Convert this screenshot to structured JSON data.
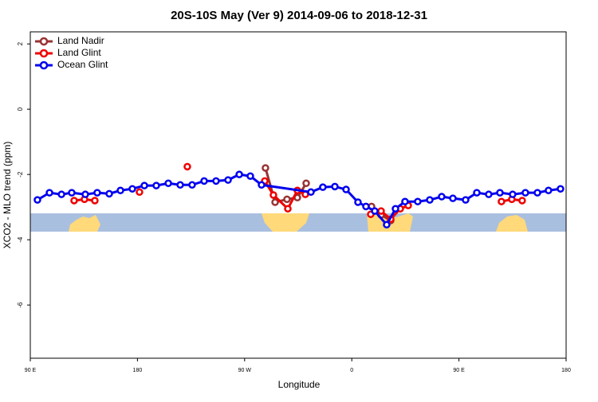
{
  "chart_data": {
    "type": "line",
    "title": "20S-10S May (Ver 9)   2014-09-06 to 2018-12-31",
    "xlabel": "Longitude",
    "ylabel": "XCO2 - MLO trend (ppm)",
    "xlim": [
      90,
      540
    ],
    "ylim": [
      -7.63,
      2.37
    ],
    "xticks": [
      {
        "value": 90,
        "label": "90 E"
      },
      {
        "value": 180,
        "label": "180"
      },
      {
        "value": 270,
        "label": "90 W"
      },
      {
        "value": 360,
        "label": "0"
      },
      {
        "value": 450,
        "label": "90 E"
      },
      {
        "value": 540,
        "label": "180"
      }
    ],
    "yticks": [
      2,
      0,
      -2,
      -4,
      -6
    ],
    "legend": "top-left",
    "series": [
      {
        "name": "Land Nadir",
        "color": "#993333",
        "x": [
          287.5,
          295.6,
          305.6,
          314.3,
          321.7,
          350,
          376.6,
          384.6,
          392.7
        ],
        "values": [
          -1.8,
          -2.85,
          -2.76,
          -2.71,
          -2.27,
          null,
          -2.98,
          -3.24,
          -3.41
        ]
      },
      {
        "name": "Land Glint",
        "color": "#ee0000",
        "x": [
          126.8,
          135.5,
          144.2,
          160,
          181.7,
          200,
          221.9,
          250,
          286.9,
          294.2,
          306.3,
          314.3,
          321.0,
          350,
          375.9,
          384.6,
          392.7,
          400.7,
          407.4,
          450,
          485.7,
          494.4,
          503.1
        ],
        "values": [
          -2.8,
          -2.76,
          -2.8,
          null,
          -2.54,
          null,
          -1.76,
          null,
          -2.2,
          -2.63,
          -3.05,
          -2.49,
          -2.61,
          null,
          -3.22,
          -3.12,
          -3.37,
          -3.05,
          -2.95,
          null,
          -2.83,
          -2.76,
          -2.8
        ]
      },
      {
        "name": "Ocean Glint",
        "color": "#0000ee",
        "x": [
          96.0,
          106.1,
          116.2,
          124.8,
          136.2,
          146.2,
          156.3,
          165.7,
          175.7,
          185.8,
          195.8,
          205.9,
          215.9,
          225.9,
          236.0,
          246.0,
          256.1,
          265.5,
          274.8,
          284.2,
          325.7,
          335.7,
          345.8,
          355.2,
          365.2,
          371.9,
          379.3,
          389.3,
          396.7,
          404.7,
          415.4,
          425.5,
          435.5,
          444.9,
          455.6,
          465.0,
          475.0,
          484.4,
          495.1,
          505.8,
          515.9,
          525.2,
          535.3
        ],
        "values": [
          -2.78,
          -2.56,
          -2.61,
          -2.56,
          -2.61,
          -2.56,
          -2.59,
          -2.49,
          -2.44,
          -2.34,
          -2.34,
          -2.27,
          -2.32,
          -2.32,
          -2.2,
          -2.2,
          -2.17,
          -2.0,
          -2.05,
          -2.32,
          -2.54,
          -2.39,
          -2.37,
          -2.46,
          -2.85,
          -2.98,
          -3.12,
          -3.54,
          -3.05,
          -2.83,
          -2.83,
          -2.78,
          -2.68,
          -2.73,
          -2.78,
          -2.56,
          -2.61,
          -2.56,
          -2.61,
          -2.56,
          -2.56,
          -2.49,
          -2.44
        ]
      }
    ]
  }
}
